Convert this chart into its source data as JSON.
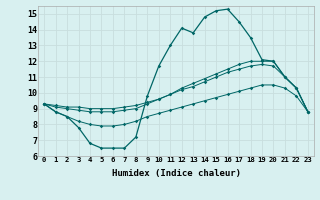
{
  "xlabel": "Humidex (Indice chaleur)",
  "bg_color": "#d8f0f0",
  "grid_color": "#c8dede",
  "line_color": "#006666",
  "xlim": [
    -0.5,
    23.5
  ],
  "ylim": [
    6,
    15.5
  ],
  "xticks": [
    0,
    1,
    2,
    3,
    4,
    5,
    6,
    7,
    8,
    9,
    10,
    11,
    12,
    13,
    14,
    15,
    16,
    17,
    18,
    19,
    20,
    21,
    22,
    23
  ],
  "yticks": [
    6,
    7,
    8,
    9,
    10,
    11,
    12,
    13,
    14,
    15
  ],
  "line1_x": [
    0,
    1,
    2,
    3,
    4,
    5,
    6,
    7,
    8,
    9,
    10,
    11,
    12,
    13,
    14,
    15,
    16,
    17,
    18,
    19,
    20,
    21,
    22,
    23
  ],
  "line1_y": [
    9.3,
    8.8,
    8.5,
    7.8,
    6.8,
    6.5,
    6.5,
    6.5,
    7.2,
    9.8,
    11.7,
    13.0,
    14.1,
    13.8,
    14.8,
    15.2,
    15.3,
    14.5,
    13.5,
    12.1,
    12.0,
    11.0,
    10.3,
    8.8
  ],
  "line2_x": [
    0,
    1,
    2,
    3,
    4,
    5,
    6,
    7,
    8,
    9,
    10,
    11,
    12,
    13,
    14,
    15,
    16,
    17,
    18,
    19,
    20,
    21,
    22,
    23
  ],
  "line2_y": [
    9.3,
    9.1,
    9.0,
    8.9,
    8.8,
    8.8,
    8.8,
    8.9,
    9.0,
    9.3,
    9.6,
    9.9,
    10.3,
    10.6,
    10.9,
    11.2,
    11.5,
    11.8,
    12.0,
    12.0,
    12.0,
    11.0,
    10.3,
    8.8
  ],
  "line3_x": [
    0,
    1,
    2,
    3,
    4,
    5,
    6,
    7,
    8,
    9,
    10,
    11,
    12,
    13,
    14,
    15,
    16,
    17,
    18,
    19,
    20,
    21,
    22,
    23
  ],
  "line3_y": [
    9.3,
    9.2,
    9.1,
    9.1,
    9.0,
    9.0,
    9.0,
    9.1,
    9.2,
    9.4,
    9.6,
    9.9,
    10.2,
    10.4,
    10.7,
    11.0,
    11.3,
    11.5,
    11.7,
    11.8,
    11.7,
    11.0,
    10.3,
    8.8
  ],
  "line4_x": [
    0,
    1,
    2,
    3,
    4,
    5,
    6,
    7,
    8,
    9,
    10,
    11,
    12,
    13,
    14,
    15,
    16,
    17,
    18,
    19,
    20,
    21,
    22,
    23
  ],
  "line4_y": [
    9.3,
    8.8,
    8.5,
    8.2,
    8.0,
    7.9,
    7.9,
    8.0,
    8.2,
    8.5,
    8.7,
    8.9,
    9.1,
    9.3,
    9.5,
    9.7,
    9.9,
    10.1,
    10.3,
    10.5,
    10.5,
    10.3,
    9.8,
    8.8
  ]
}
